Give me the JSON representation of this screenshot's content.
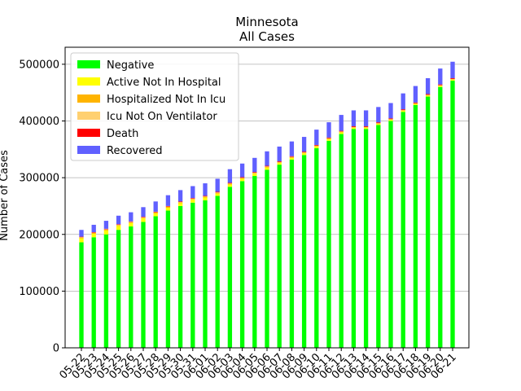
{
  "chart_data": {
    "type": "bar",
    "stacked": true,
    "title": "Minnesota",
    "subtitle": "All Cases",
    "xlabel": "",
    "ylabel": "Number of Cases",
    "ylim": [
      0,
      530000
    ],
    "yticks": [
      0,
      100000,
      200000,
      300000,
      400000,
      500000
    ],
    "grid": "horizontal",
    "legend_position": "top-left",
    "categories": [
      "05-22",
      "05-23",
      "05-24",
      "05-25",
      "05-26",
      "05-27",
      "05-28",
      "05-29",
      "05-30",
      "05-31",
      "06-01",
      "06-02",
      "06-03",
      "06-04",
      "06-05",
      "06-06",
      "06-07",
      "06-08",
      "06-09",
      "06-10",
      "06-11",
      "06-12",
      "06-13",
      "06-14",
      "06-15",
      "06-16",
      "06-17",
      "06-18",
      "06-19",
      "06-20",
      "06-21"
    ],
    "series": [
      {
        "name": "Negative",
        "color": "#00ff00",
        "values": [
          186000,
          195000,
          200000,
          208000,
          214000,
          222000,
          232000,
          242000,
          250000,
          256000,
          260000,
          268000,
          284000,
          294000,
          303000,
          314000,
          323000,
          332000,
          340000,
          352000,
          365000,
          377000,
          386000,
          386000,
          393000,
          400000,
          416000,
          428000,
          443000,
          460000,
          471000
        ]
      },
      {
        "name": "Active Not In Hospital",
        "color": "#ffff00",
        "values": [
          7000,
          6000,
          7000,
          7000,
          6000,
          6000,
          5000,
          5000,
          5000,
          5000,
          5000,
          4000,
          4000,
          4000,
          4000,
          4000,
          3000,
          3000,
          3000,
          3000,
          3000,
          3000,
          2000,
          2000,
          2000,
          2000,
          2000,
          2000,
          2000,
          2000,
          2000
        ]
      },
      {
        "name": "Hospitalized Not In Icu",
        "color": "#ffb400",
        "values": [
          1500,
          1500,
          1500,
          1500,
          1500,
          1500,
          1500,
          1500,
          1500,
          1500,
          1400,
          1400,
          1400,
          1300,
          1300,
          1300,
          1200,
          1200,
          1200,
          1100,
          1100,
          1000,
          1000,
          1000,
          900,
          900,
          900,
          900,
          800,
          800,
          800
        ]
      },
      {
        "name": "Icu Not On Ventilator",
        "color": "#ffd070",
        "values": [
          600,
          600,
          600,
          600,
          600,
          600,
          600,
          600,
          600,
          600,
          600,
          600,
          500,
          500,
          500,
          500,
          500,
          500,
          500,
          400,
          400,
          400,
          400,
          400,
          400,
          400,
          400,
          400,
          300,
          300,
          300
        ]
      },
      {
        "name": "Death",
        "color": "#ff0000",
        "values": [
          800,
          850,
          870,
          900,
          920,
          950,
          980,
          1000,
          1020,
          1040,
          1060,
          1080,
          1100,
          1120,
          1140,
          1160,
          1180,
          1200,
          1220,
          1240,
          1260,
          1280,
          1300,
          1310,
          1320,
          1330,
          1340,
          1350,
          1360,
          1370,
          1380
        ]
      },
      {
        "name": "Recovered",
        "color": "#6060ff",
        "values": [
          12000,
          13000,
          14000,
          15000,
          16000,
          17000,
          18000,
          19000,
          20000,
          21000,
          22000,
          23000,
          24000,
          24000,
          25000,
          25500,
          26000,
          26000,
          26000,
          27000,
          27000,
          28000,
          28000,
          28000,
          27000,
          27000,
          28000,
          29000,
          28000,
          28000,
          29000
        ]
      }
    ]
  }
}
